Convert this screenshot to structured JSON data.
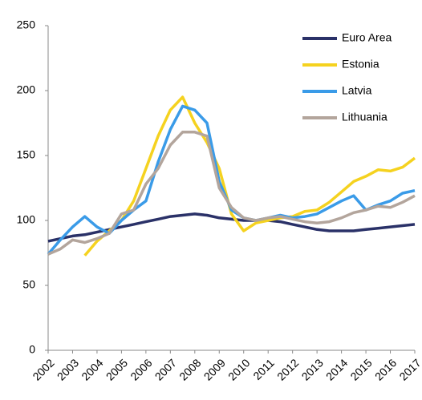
{
  "chart_data": {
    "type": "line",
    "x": [
      2002,
      2002.5,
      2003,
      2003.5,
      2004,
      2004.5,
      2005,
      2005.5,
      2006,
      2006.5,
      2007,
      2007.5,
      2008,
      2008.5,
      2009,
      2009.5,
      2010,
      2010.5,
      2011,
      2011.5,
      2012,
      2012.5,
      2013,
      2013.5,
      2014,
      2014.5,
      2015,
      2015.5,
      2016,
      2016.5,
      2017
    ],
    "series": [
      {
        "name": "Euro Area",
        "color": "#2a3168",
        "values": [
          84,
          86,
          88,
          89,
          91,
          93,
          95,
          97,
          99,
          101,
          103,
          104,
          105,
          104,
          102,
          101,
          100,
          100,
          100,
          99,
          97,
          95,
          93,
          92,
          92,
          92,
          93,
          94,
          95,
          96,
          97
        ]
      },
      {
        "name": "Estonia",
        "color": "#f5d21f",
        "values": [
          null,
          null,
          null,
          73,
          84,
          92,
          100,
          115,
          140,
          165,
          185,
          195,
          175,
          160,
          140,
          105,
          92,
          98,
          100,
          102,
          103,
          107,
          108,
          114,
          122,
          130,
          134,
          139,
          138,
          141,
          148
        ]
      },
      {
        "name": "Latvia",
        "color": "#3a9be8",
        "values": [
          74,
          85,
          95,
          103,
          95,
          90,
          100,
          108,
          115,
          145,
          170,
          188,
          185,
          175,
          130,
          108,
          102,
          100,
          102,
          104,
          102,
          103,
          105,
          110,
          115,
          119,
          108,
          112,
          115,
          121,
          123
        ]
      },
      {
        "name": "Lithuania",
        "color": "#b3a59c",
        "values": [
          74,
          78,
          85,
          83,
          86,
          90,
          105,
          108,
          128,
          140,
          158,
          168,
          168,
          165,
          125,
          110,
          102,
          100,
          102,
          103,
          101,
          99,
          98,
          99,
          102,
          106,
          108,
          111,
          110,
          114,
          119
        ]
      }
    ],
    "xlim": [
      2002,
      2017
    ],
    "xticks": [
      2002,
      2003,
      2004,
      2005,
      2006,
      2007,
      2008,
      2009,
      2010,
      2011,
      2012,
      2013,
      2014,
      2015,
      2016,
      2017
    ],
    "ylim": [
      0,
      250
    ],
    "yticks": [
      0,
      50,
      100,
      150,
      200,
      250
    ]
  }
}
